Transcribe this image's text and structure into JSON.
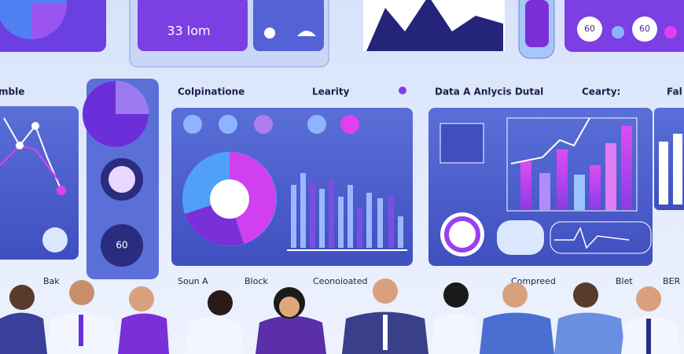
{
  "top_panels": {
    "center_label": "33 lom",
    "badges": [
      "60",
      "60"
    ]
  },
  "section_labels": [
    "mble",
    "Colpinatione",
    "Learity",
    "Data A Anlycis Dutal",
    "Cearty:",
    "Fal"
  ],
  "gauge_label": "60",
  "people_labels": [
    "Bak",
    "Soun A",
    "Block",
    "Ceonoioated",
    "Compreed",
    "Blet",
    "BER"
  ]
}
